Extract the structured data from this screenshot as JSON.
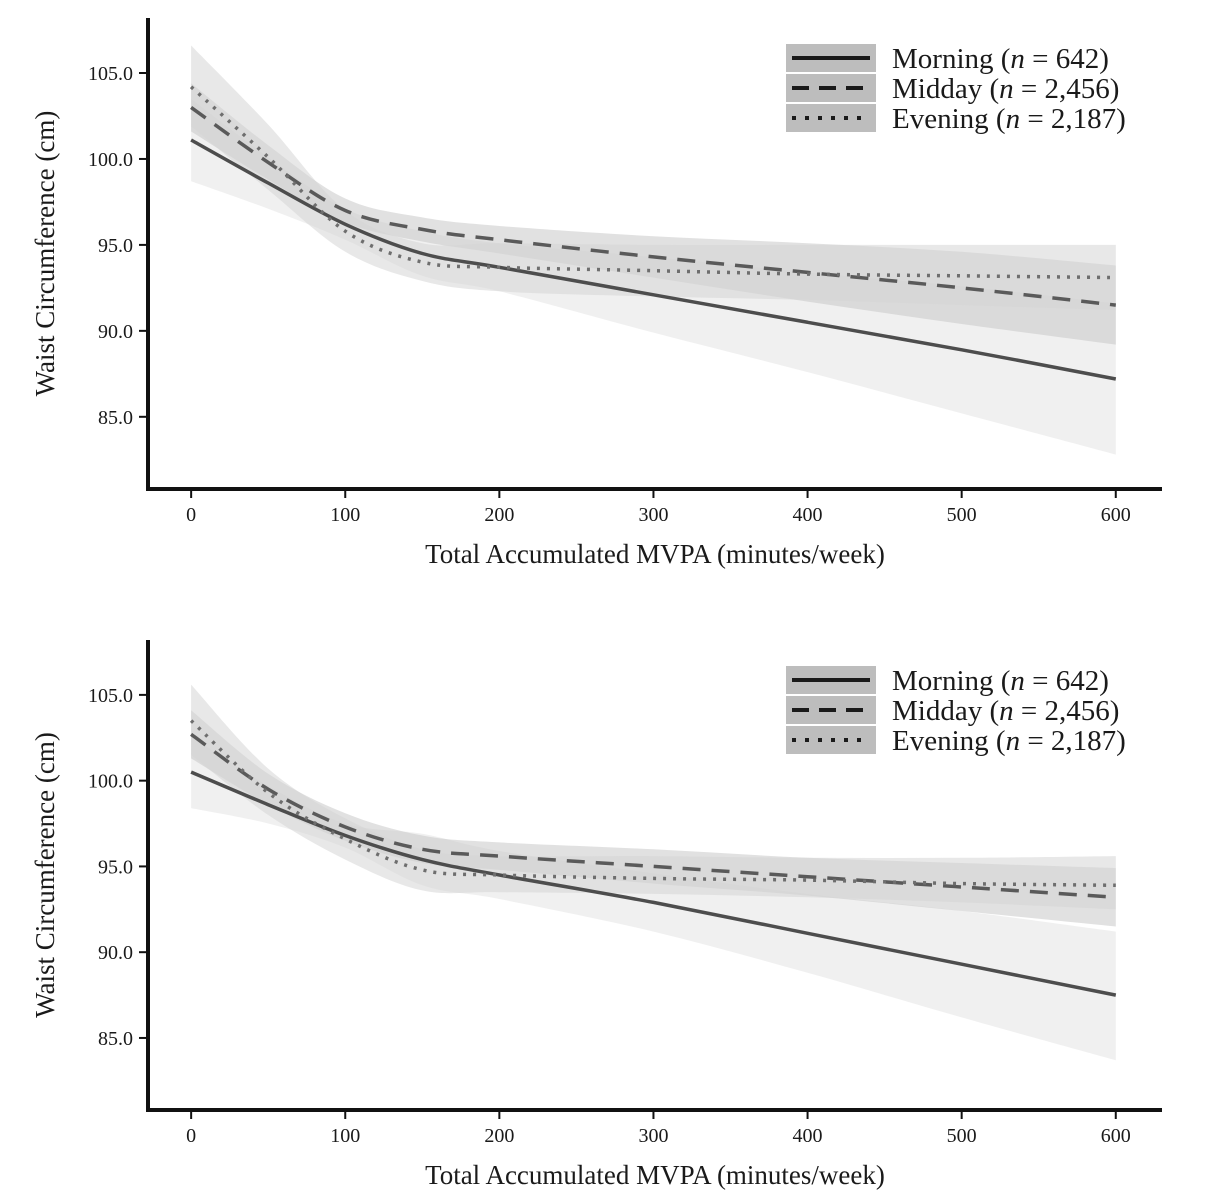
{
  "chart_data": [
    {
      "type": "line",
      "xlabel": "Total Accumulated MVPA  (minutes/week)",
      "ylabel": "Waist Circumference (cm)",
      "xlim": [
        -28,
        630
      ],
      "ylim": [
        80.8,
        108.2
      ],
      "xticks": [
        "0",
        "100",
        "200",
        "300",
        "400",
        "500",
        "600"
      ],
      "yticks": [
        "85.0",
        "90.0",
        "95.0",
        "100.0",
        "105.0"
      ],
      "legend_position": "top-right",
      "legend_swatch_color": "#bdbdbd",
      "series": [
        {
          "name": "Morning (n = 642)",
          "label_main": "Morning (",
          "label_n": "n",
          "label_rest": " = 642)",
          "style": "solid",
          "color": "#4d4d4d",
          "band_color": "#e3e3e3",
          "x": [
            0,
            50,
            100,
            150,
            200,
            300,
            400,
            500,
            600
          ],
          "y": [
            101.1,
            98.6,
            96.2,
            94.5,
            93.7,
            92.1,
            90.5,
            88.9,
            87.2
          ],
          "lower": [
            98.7,
            97.1,
            95.3,
            93.2,
            92.3,
            89.9,
            87.6,
            85.2,
            82.8
          ],
          "upper": [
            103.5,
            100.1,
            97.1,
            95.8,
            95.1,
            94.3,
            93.4,
            92.6,
            91.6
          ]
        },
        {
          "name": "Midday (n = 2,456)",
          "label_main": "Midday  (",
          "label_n": "n",
          "label_rest": " = 2,456)",
          "style": "dashed",
          "color": "#5a5a5a",
          "band_color": "#c8c8c8",
          "x": [
            0,
            50,
            100,
            150,
            200,
            300,
            400,
            500,
            600
          ],
          "y": [
            103.0,
            99.8,
            97.0,
            95.9,
            95.3,
            94.3,
            93.4,
            92.5,
            91.5
          ],
          "lower": [
            101.6,
            98.8,
            96.3,
            95.2,
            94.5,
            93.1,
            91.7,
            90.4,
            89.2
          ],
          "upper": [
            104.4,
            100.8,
            97.7,
            96.6,
            96.1,
            95.5,
            95.1,
            94.6,
            93.8
          ]
        },
        {
          "name": "Evening (n = 2,187)",
          "label_main": "Evening (",
          "label_n": "n",
          "label_rest": " = 2,187)",
          "style": "dotted",
          "color": "#6e6e6e",
          "band_color": "#d6d6d6",
          "x": [
            0,
            50,
            100,
            150,
            200,
            300,
            400,
            500,
            600
          ],
          "y": [
            104.2,
            100.1,
            95.8,
            94.0,
            93.7,
            93.5,
            93.3,
            93.2,
            93.1
          ],
          "lower": [
            101.9,
            98.2,
            94.6,
            92.9,
            92.3,
            92.0,
            91.8,
            91.5,
            91.2
          ],
          "upper": [
            106.6,
            102.0,
            97.0,
            95.1,
            95.1,
            95.0,
            95.0,
            95.0,
            95.0
          ]
        }
      ]
    },
    {
      "type": "line",
      "xlabel": "Total Accumulated MVPA  (minutes/week)",
      "ylabel": "Waist Circumference (cm)",
      "xlim": [
        -28,
        630
      ],
      "ylim": [
        80.8,
        108.2
      ],
      "xticks": [
        "0",
        "100",
        "200",
        "300",
        "400",
        "500",
        "600"
      ],
      "yticks": [
        "85.0",
        "90.0",
        "95.0",
        "100.0",
        "105.0"
      ],
      "legend_position": "top-right",
      "legend_swatch_color": "#bdbdbd",
      "series": [
        {
          "name": "Morning (n = 642)",
          "label_main": "Morning (",
          "label_n": "n",
          "label_rest": " = 642)",
          "style": "solid",
          "color": "#4d4d4d",
          "band_color": "#e3e3e3",
          "x": [
            0,
            50,
            100,
            150,
            200,
            300,
            400,
            500,
            600
          ],
          "y": [
            100.5,
            98.6,
            96.8,
            95.4,
            94.5,
            92.9,
            91.1,
            89.3,
            87.5
          ],
          "lower": [
            98.4,
            97.5,
            96.1,
            93.9,
            93.1,
            91.2,
            88.8,
            86.2,
            83.7
          ],
          "upper": [
            102.6,
            99.7,
            97.5,
            96.9,
            95.9,
            94.6,
            93.4,
            92.4,
            91.2
          ]
        },
        {
          "name": "Midday (n = 2,456)",
          "label_main": "Midday  (",
          "label_n": "n",
          "label_rest": " = 2,456)",
          "style": "dashed",
          "color": "#5a5a5a",
          "band_color": "#c8c8c8",
          "x": [
            0,
            50,
            100,
            150,
            200,
            300,
            400,
            500,
            600
          ],
          "y": [
            102.7,
            99.5,
            97.3,
            96.0,
            95.6,
            95.0,
            94.4,
            93.8,
            93.2
          ],
          "lower": [
            101.3,
            98.6,
            96.5,
            95.2,
            94.8,
            94.0,
            93.3,
            92.4,
            91.5
          ],
          "upper": [
            104.1,
            100.4,
            98.1,
            96.8,
            96.4,
            96.0,
            95.5,
            95.2,
            94.9
          ]
        },
        {
          "name": "Evening (n = 2,187)",
          "label_main": "Evening (",
          "label_n": "n",
          "label_rest": " = 2,187)",
          "style": "dotted",
          "color": "#6e6e6e",
          "band_color": "#d6d6d6",
          "x": [
            0,
            50,
            100,
            150,
            200,
            300,
            400,
            500,
            600
          ],
          "y": [
            103.5,
            99.3,
            96.6,
            94.8,
            94.5,
            94.3,
            94.2,
            94.0,
            93.9
          ],
          "lower": [
            101.5,
            98.0,
            95.4,
            93.6,
            93.5,
            93.4,
            93.2,
            92.9,
            92.5
          ],
          "upper": [
            105.6,
            100.7,
            97.8,
            96.0,
            95.6,
            95.6,
            95.5,
            95.5,
            95.6
          ]
        }
      ]
    }
  ]
}
